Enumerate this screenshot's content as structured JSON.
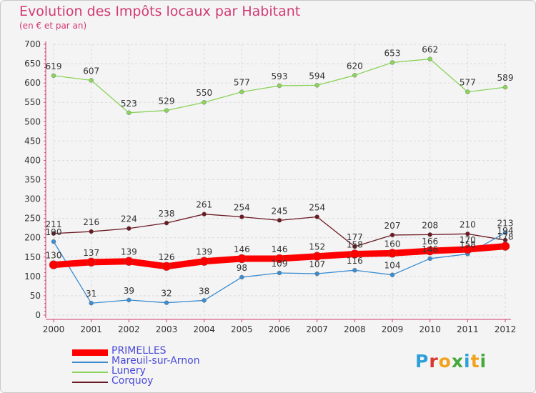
{
  "header": {
    "title": "Evolution des Impôts locaux par Habitant",
    "subtitle": "(en € et par an)"
  },
  "brand": {
    "logo_letters": [
      "P",
      "r",
      "o",
      "x",
      "i",
      "t",
      "i"
    ],
    "logo_colors": [
      "#2e9fd8",
      "#d9382f",
      "#f2a21b",
      "#45a83a",
      "#2e9fd8",
      "#f2a21b",
      "#45a83a"
    ]
  },
  "chart_data": {
    "type": "line",
    "x": [
      "2000",
      "2001",
      "2002",
      "2003",
      "2004",
      "2005",
      "2006",
      "2007",
      "2008",
      "2009",
      "2010",
      "2011",
      "2012"
    ],
    "ylim": [
      0,
      700
    ],
    "yticks": [
      0,
      50,
      100,
      150,
      200,
      250,
      300,
      350,
      400,
      450,
      500,
      550,
      600,
      650,
      700
    ],
    "grid": true,
    "legend_position": "bottom-left",
    "title": "Evolution des Impôts locaux par Habitant",
    "ylabel": "(en € et par an)",
    "series": [
      {
        "name": "Lunery",
        "color": "#8bd35b",
        "values": [
          619,
          607,
          523,
          529,
          550,
          577,
          593,
          594,
          620,
          653,
          662,
          577,
          589
        ]
      },
      {
        "name": "Corquoy",
        "color": "#6b1a24",
        "values": [
          211,
          216,
          224,
          238,
          261,
          254,
          245,
          254,
          177,
          207,
          208,
          210,
          194
        ]
      },
      {
        "name": "Mareuil-sur-Arnon",
        "color": "#3c8cd0",
        "values": [
          190,
          31,
          39,
          32,
          38,
          98,
          109,
          107,
          116,
          104,
          146,
          158,
          213
        ]
      },
      {
        "name": "PRIMELLES",
        "color": "#ff0000",
        "values": [
          130,
          137,
          139,
          126,
          139,
          146,
          146,
          152,
          158,
          160,
          166,
          170,
          178
        ]
      }
    ]
  },
  "legend": [
    {
      "name": "PRIMELLES",
      "color": "#ff0000"
    },
    {
      "name": "Mareuil-sur-Arnon",
      "color": "#3c8cd0"
    },
    {
      "name": "Lunery",
      "color": "#8bd35b"
    },
    {
      "name": "Corquoy",
      "color": "#6b1a24"
    }
  ]
}
